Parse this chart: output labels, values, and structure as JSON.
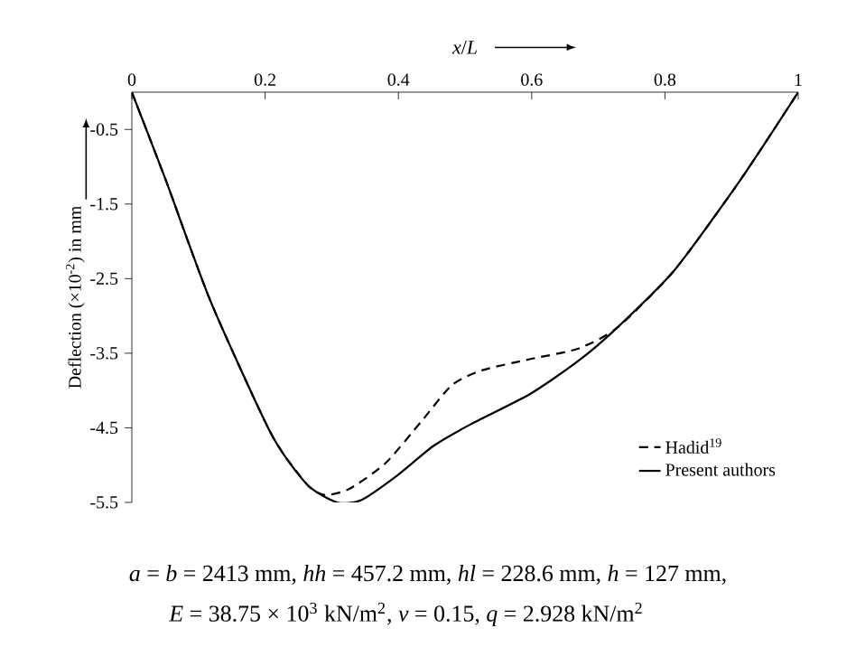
{
  "chart_data": {
    "type": "line",
    "xlabel": "*x*/*L*",
    "ylabel": "Deflection (×10$^{-2}$) in mm",
    "xlim": [
      0,
      1
    ],
    "ylim": [
      -5.5,
      0
    ],
    "xticks": [
      0,
      0.2,
      0.4,
      0.6,
      0.8,
      1
    ],
    "yticks": [
      -0.5,
      -1.5,
      -2.5,
      -3.5,
      -4.5,
      -5.5
    ],
    "legend": "bottom right",
    "marker": "none",
    "grid": false,
    "series": [
      {
        "name": "Hadid$^{19}$",
        "color": "#000000",
        "line_style": "dashed",
        "x": [
          0,
          0.051,
          0.118,
          0.209,
          0.263,
          0.29,
          0.326,
          0.38,
          0.434,
          0.48,
          0.525,
          0.597,
          0.669,
          0.728,
          0.814,
          0.913,
          1
        ],
        "values": [
          0,
          -1.18,
          -2.8,
          -4.58,
          -5.26,
          -5.4,
          -5.32,
          -4.98,
          -4.42,
          -3.93,
          -3.73,
          -3.58,
          -3.44,
          -3.16,
          -2.39,
          -1.18,
          0
        ]
      },
      {
        "name": "Present authors",
        "color": "#000000",
        "line_style": "solid",
        "x": [
          0,
          0.051,
          0.118,
          0.209,
          0.263,
          0.308,
          0.344,
          0.398,
          0.453,
          0.507,
          0.597,
          0.669,
          0.728,
          0.814,
          0.913,
          1
        ],
        "values": [
          0,
          -1.18,
          -2.8,
          -4.58,
          -5.26,
          -5.5,
          -5.47,
          -5.14,
          -4.74,
          -4.46,
          -4.05,
          -3.61,
          -3.16,
          -2.39,
          -1.18,
          0
        ]
      }
    ],
    "annotations": [
      "*a* = *b* = 2413 mm, *hh* = 457.2 mm, *hl* = 228.6 mm, *h* = 127 mm,",
      "*E* = 38.75 × 10$^{3}$ kN/m$^{2}$, *v* = 0.15, *q* = 2.928 kN/m$^{2}$"
    ]
  }
}
